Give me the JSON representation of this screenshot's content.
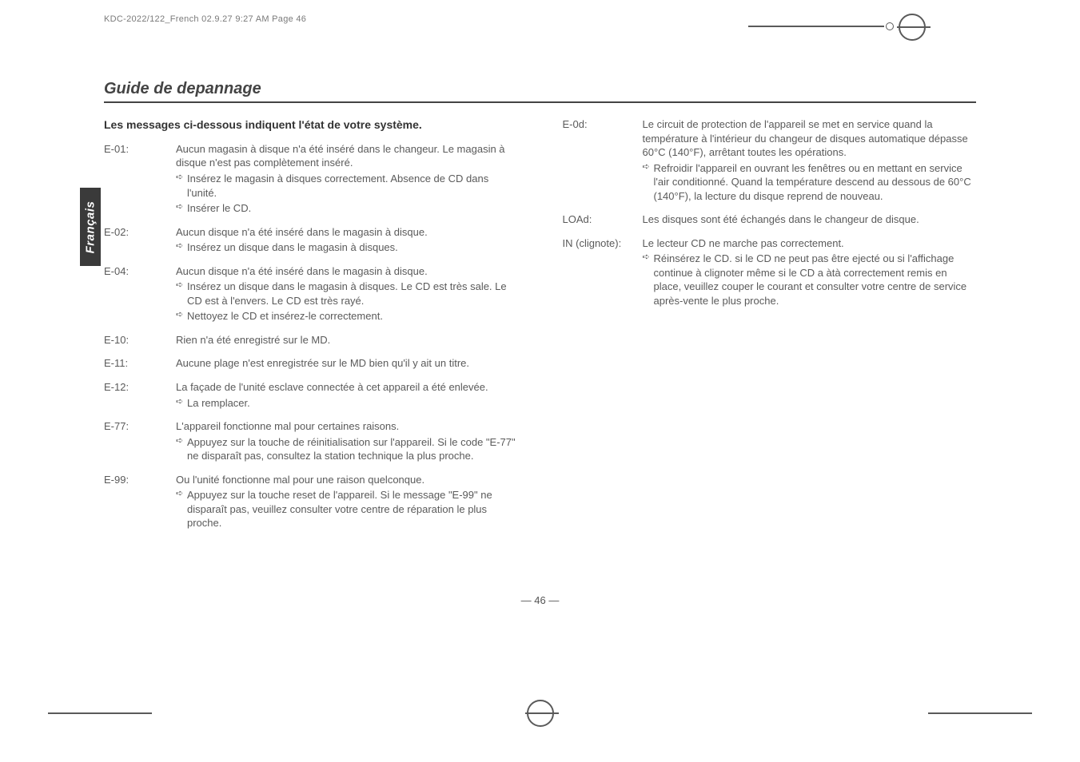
{
  "header": "KDC-2022/122_French  02.9.27  9:27 AM  Page 46",
  "sidetab": "Français",
  "section_title": "Guide de depannage",
  "intro": "Les messages ci-dessous indiquent l'état de votre système.",
  "left": [
    {
      "code": "E-01:",
      "text": "Aucun magasin à disque n'a été inséré dans le changeur. Le magasin à disque n'est pas complètement inséré.",
      "subs": [
        "Insérez le magasin à disques correctement. Absence de CD dans l'unité.",
        "Insérer le CD."
      ]
    },
    {
      "code": "E-02:",
      "text": "Aucun disque n'a été inséré dans le magasin à disque.",
      "subs": [
        "Insérez un disque dans le magasin à disques."
      ]
    },
    {
      "code": "E-04:",
      "text": "Aucun disque n'a été inséré dans le magasin à disque.",
      "subs": [
        "Insérez un disque dans le magasin à disques. Le CD est très sale. Le CD est à l'envers. Le CD est très rayé.",
        "Nettoyez le CD et insérez-le correctement."
      ]
    },
    {
      "code": "E-10:",
      "text": "Rien n'a été enregistré sur le MD.",
      "subs": []
    },
    {
      "code": "E-11:",
      "text": "Aucune plage n'est enregistrée sur le MD bien qu'il y ait un titre.",
      "subs": []
    },
    {
      "code": "E-12:",
      "text": "La façade de l'unité esclave connectée à cet appareil a été enlevée.",
      "subs": [
        "La remplacer."
      ]
    },
    {
      "code": "E-77:",
      "text": "L'appareil fonctionne mal pour certaines raisons.",
      "subs": [
        "Appuyez sur la touche de réinitialisation sur l'appareil. Si le code \"E-77\" ne disparaît pas, consultez la station technique la plus proche."
      ]
    },
    {
      "code": "E-99:",
      "text": "Ou l'unité fonctionne mal pour une raison quelconque.",
      "subs": [
        "Appuyez sur la touche reset de l'appareil. Si le message \"E-99\" ne disparaît pas, veuillez consulter votre centre de réparation le plus proche."
      ]
    }
  ],
  "right": [
    {
      "code": "E-0d:",
      "text": "Le circuit de protection de l'appareil se met en service quand la température à l'intérieur du changeur de disques automatique dépasse 60°C (140°F), arrêtant toutes les opérations.",
      "subs": [
        "Refroidir l'appareil en ouvrant les fenêtres ou en mettant en service l'air conditionné. Quand la température descend au dessous de 60°C (140°F), la lecture du disque reprend de nouveau."
      ]
    },
    {
      "code": "LOAd:",
      "text": "Les disques sont été échangés dans le changeur de disque.",
      "subs": []
    },
    {
      "code": "IN (clignote):",
      "text": "Le lecteur CD ne marche pas correctement.",
      "subs": [
        "Réinsérez le CD. si le CD ne peut pas être ejecté ou si l'affichage continue à clignoter même si le CD a àtà correctement remis en place, veuillez couper le courant et consulter votre centre de service après-vente le plus proche."
      ]
    }
  ],
  "page_number": "— 46 —"
}
